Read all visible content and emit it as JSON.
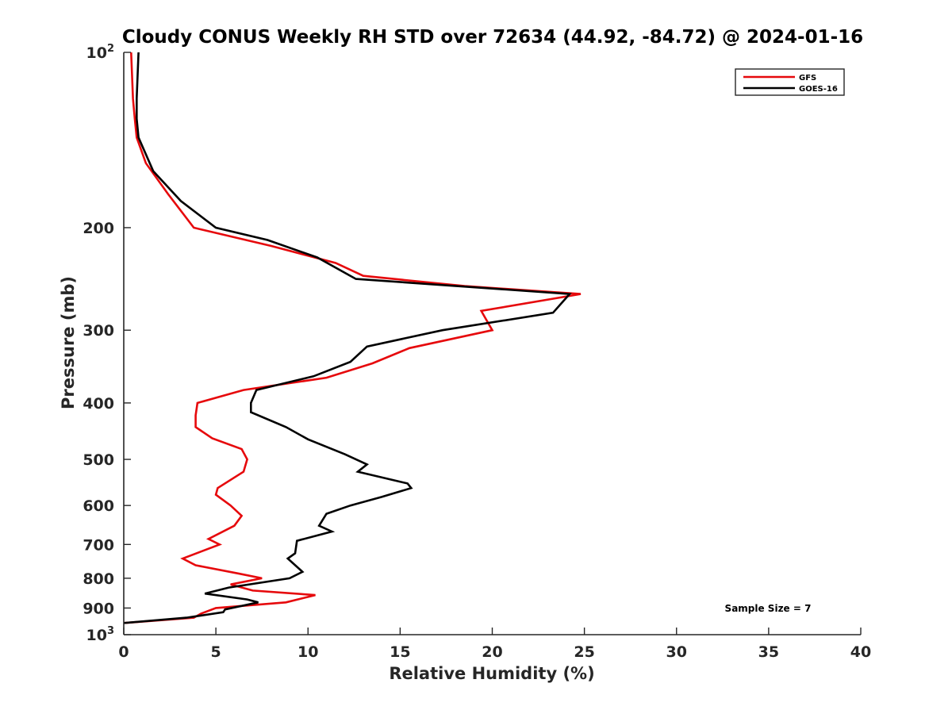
{
  "chart_data": {
    "type": "line",
    "title": "Cloudy CONUS Weekly RH STD over 72634 (44.92, -84.72) @ 2024-01-16",
    "xlabel": "Relative Humidity (%)",
    "ylabel": "Pressure (mb)",
    "xlim": [
      0,
      40
    ],
    "ylim": [
      100,
      1000
    ],
    "yscale": "log",
    "y_reversed": true,
    "grid": false,
    "legend_position": "top-right",
    "x_ticks": [
      "0",
      "5",
      "10",
      "15",
      "20",
      "25",
      "30",
      "35",
      "40"
    ],
    "y_ticks": [
      {
        "value": 100,
        "base": "10",
        "exp": "2"
      },
      {
        "value": 200,
        "label": "200"
      },
      {
        "value": 300,
        "label": "300"
      },
      {
        "value": 400,
        "label": "400"
      },
      {
        "value": 500,
        "label": "500"
      },
      {
        "value": 600,
        "label": "600"
      },
      {
        "value": 700,
        "label": "700"
      },
      {
        "value": 800,
        "label": "800"
      },
      {
        "value": 900,
        "label": "900"
      },
      {
        "value": 1000,
        "base": "10",
        "exp": "3"
      }
    ],
    "annotation": "Sample Size = 7",
    "series": [
      {
        "name": "GFS",
        "color": "#e6090c",
        "points": [
          [
            0.4,
            100
          ],
          [
            0.5,
            120
          ],
          [
            0.6,
            130
          ],
          [
            0.7,
            140
          ],
          [
            1.2,
            155
          ],
          [
            2.4,
            175
          ],
          [
            3.8,
            200
          ],
          [
            8.0,
            215
          ],
          [
            11.5,
            230
          ],
          [
            13.0,
            242
          ],
          [
            18.5,
            252
          ],
          [
            24.8,
            260
          ],
          [
            19.4,
            278
          ],
          [
            20.0,
            300
          ],
          [
            15.5,
            322
          ],
          [
            13.5,
            342
          ],
          [
            11.0,
            362
          ],
          [
            6.5,
            380
          ],
          [
            4.0,
            400
          ],
          [
            3.9,
            420
          ],
          [
            3.9,
            440
          ],
          [
            4.8,
            460
          ],
          [
            6.4,
            480
          ],
          [
            6.7,
            500
          ],
          [
            6.5,
            525
          ],
          [
            5.1,
            560
          ],
          [
            5.0,
            575
          ],
          [
            5.8,
            600
          ],
          [
            6.4,
            625
          ],
          [
            6.0,
            650
          ],
          [
            4.6,
            685
          ],
          [
            5.2,
            700
          ],
          [
            3.2,
            740
          ],
          [
            3.9,
            760
          ],
          [
            6.2,
            785
          ],
          [
            7.5,
            800
          ],
          [
            5.8,
            820
          ],
          [
            7.0,
            840
          ],
          [
            10.4,
            855
          ],
          [
            8.8,
            880
          ],
          [
            5.0,
            900
          ],
          [
            4.2,
            920
          ],
          [
            3.8,
            935
          ],
          [
            0.0,
            955
          ]
        ]
      },
      {
        "name": "GOES-16",
        "color": "#000000",
        "points": [
          [
            0.8,
            100
          ],
          [
            0.7,
            120
          ],
          [
            0.7,
            130
          ],
          [
            0.8,
            140
          ],
          [
            1.6,
            160
          ],
          [
            3.1,
            180
          ],
          [
            5.0,
            200
          ],
          [
            7.8,
            210
          ],
          [
            10.5,
            225
          ],
          [
            12.6,
            245
          ],
          [
            24.2,
            260
          ],
          [
            23.3,
            280
          ],
          [
            17.3,
            300
          ],
          [
            13.2,
            320
          ],
          [
            12.3,
            340
          ],
          [
            10.3,
            360
          ],
          [
            7.2,
            380
          ],
          [
            6.9,
            400
          ],
          [
            6.9,
            415
          ],
          [
            8.8,
            440
          ],
          [
            10.0,
            462
          ],
          [
            12.0,
            490
          ],
          [
            13.2,
            510
          ],
          [
            12.7,
            525
          ],
          [
            15.4,
            550
          ],
          [
            15.6,
            560
          ],
          [
            14.0,
            580
          ],
          [
            12.3,
            600
          ],
          [
            11.0,
            620
          ],
          [
            10.6,
            650
          ],
          [
            11.3,
            665
          ],
          [
            9.4,
            690
          ],
          [
            9.3,
            725
          ],
          [
            8.9,
            740
          ],
          [
            9.7,
            780
          ],
          [
            9.0,
            800
          ],
          [
            5.7,
            830
          ],
          [
            4.4,
            850
          ],
          [
            6.7,
            870
          ],
          [
            7.3,
            880
          ],
          [
            5.5,
            905
          ],
          [
            5.4,
            915
          ],
          [
            3.4,
            935
          ],
          [
            0.0,
            955
          ]
        ]
      }
    ]
  }
}
